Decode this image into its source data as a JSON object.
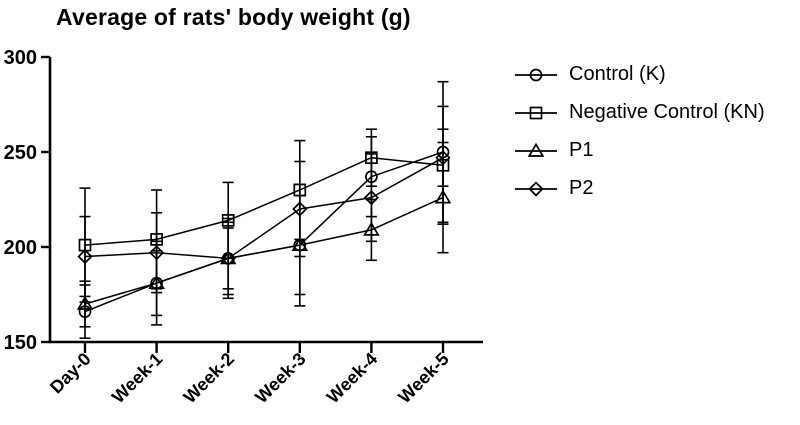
{
  "chart_data": {
    "type": "line",
    "title": "Average of rats' body weight (g)",
    "xlabel": "",
    "ylabel": "",
    "categories": [
      "Day-0",
      "Week-1",
      "Week-2",
      "Week-3",
      "Week-4",
      "Week-5"
    ],
    "ylim": [
      150,
      300
    ],
    "yticks": [
      150,
      200,
      250,
      300
    ],
    "grid": false,
    "legend_position": "right",
    "background": "#ffffff",
    "axis_color": "#000000",
    "series": [
      {
        "name": "Control (K)",
        "marker": "circle",
        "color": "#000000",
        "values": [
          166,
          181,
          194,
          201,
          237,
          250
        ],
        "errors": [
          14,
          22,
          19,
          26,
          21,
          37
        ]
      },
      {
        "name": "Negative Control (KN)",
        "marker": "square",
        "color": "#000000",
        "values": [
          201,
          204,
          214,
          230,
          247,
          243
        ],
        "errors": [
          30,
          26,
          20,
          26,
          15,
          31
        ]
      },
      {
        "name": "P1",
        "marker": "triangle",
        "color": "#000000",
        "values": [
          170,
          181,
          194,
          201,
          209,
          226
        ],
        "errors": [
          12,
          17,
          21,
          32,
          16,
          29
        ]
      },
      {
        "name": "P2",
        "marker": "diamond",
        "color": "#000000",
        "values": [
          195,
          197,
          194,
          220,
          226,
          247
        ],
        "errors": [
          21,
          21,
          16,
          25,
          23,
          15
        ]
      }
    ]
  }
}
